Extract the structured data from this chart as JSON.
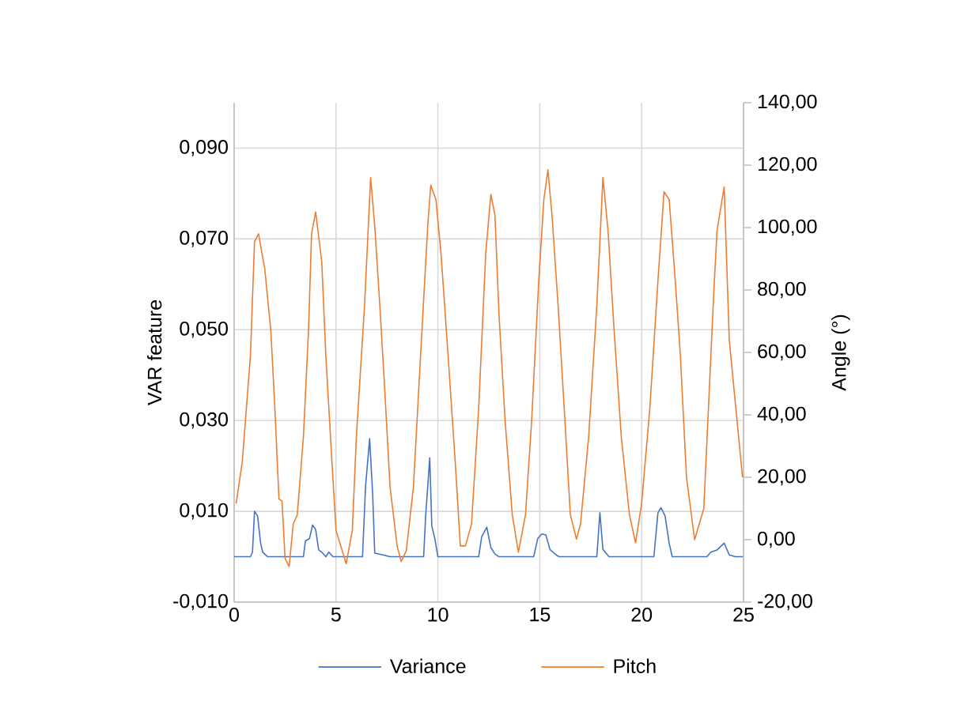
{
  "chart_data": {
    "type": "line",
    "xlabel": null,
    "ylabel": "VAR feature",
    "y2label": "Angle (°)",
    "xlim": [
      0,
      25
    ],
    "xticks": [
      0,
      5,
      10,
      15,
      20,
      25
    ],
    "ylim": [
      -0.01,
      0.1
    ],
    "yticks": [
      {
        "value": -0.01,
        "label": "-0,010"
      },
      {
        "value": 0.01,
        "label": "0,010"
      },
      {
        "value": 0.03,
        "label": "0,030"
      },
      {
        "value": 0.05,
        "label": "0,050"
      },
      {
        "value": 0.07,
        "label": "0,070"
      },
      {
        "value": 0.09,
        "label": "0,090"
      }
    ],
    "y2lim": [
      -20,
      140
    ],
    "y2ticks": [
      {
        "value": -20,
        "label": "-20,00"
      },
      {
        "value": 0,
        "label": "0,00"
      },
      {
        "value": 20,
        "label": "20,00"
      },
      {
        "value": 40,
        "label": "40,00"
      },
      {
        "value": 60,
        "label": "60,00"
      },
      {
        "value": 80,
        "label": "80,00"
      },
      {
        "value": 100,
        "label": "100,00"
      },
      {
        "value": 120,
        "label": "120,00"
      },
      {
        "value": 140,
        "label": "140,00"
      }
    ],
    "grid": true,
    "legend": "bottom",
    "marker": "none",
    "line_style": "solid",
    "series": [
      {
        "name": "Variance",
        "color": "#4472c4",
        "axis": "y",
        "x": [
          0,
          0.8,
          0.9,
          1.0,
          1.15,
          1.3,
          1.4,
          1.65,
          3.4,
          3.5,
          3.7,
          3.85,
          4.0,
          4.15,
          4.3,
          4.5,
          4.65,
          4.85,
          6.3,
          6.45,
          6.65,
          6.8,
          6.9,
          7.3,
          7.65,
          9.3,
          9.4,
          9.6,
          9.7,
          9.85,
          10.0,
          12.0,
          12.15,
          12.4,
          12.6,
          12.8,
          13.0,
          14.7,
          14.9,
          15.1,
          15.3,
          15.5,
          15.8,
          15.95,
          17.8,
          17.95,
          18.1,
          18.4,
          20.6,
          20.8,
          20.95,
          21.15,
          21.35,
          21.5,
          23.2,
          23.4,
          23.7,
          24.05,
          24.3,
          24.6,
          25
        ],
        "values": [
          0,
          0,
          0.001,
          0.01,
          0.009,
          0.003,
          0.001,
          0,
          0,
          0.0035,
          0.004,
          0.007,
          0.006,
          0.0015,
          0.001,
          0,
          0.001,
          0,
          0,
          0.0155,
          0.026,
          0.0137,
          0.0008,
          0.0004,
          0,
          0,
          0.009,
          0.0218,
          0.0068,
          0.004,
          0,
          0,
          0.0044,
          0.0065,
          0.002,
          0.0006,
          0,
          0,
          0.004,
          0.005,
          0.0048,
          0.0016,
          0.0004,
          0,
          0,
          0.0097,
          0.0016,
          0,
          0,
          0.0097,
          0.0108,
          0.009,
          0.003,
          0,
          0,
          0.001,
          0.0015,
          0.003,
          0.0004,
          0,
          0
        ]
      },
      {
        "name": "Pitch",
        "color": "#ed7d31",
        "axis": "y2",
        "x": [
          0.1,
          0.4,
          0.8,
          1.0,
          1.2,
          1.4,
          1.5,
          1.8,
          2.0,
          2.2,
          2.35,
          2.5,
          2.7,
          2.9,
          3.1,
          3.4,
          3.65,
          3.8,
          4.0,
          4.3,
          4.5,
          4.8,
          5.0,
          5.3,
          5.5,
          5.8,
          6.0,
          6.4,
          6.7,
          6.9,
          7.15,
          7.4,
          7.65,
          8.0,
          8.2,
          8.45,
          8.8,
          9.15,
          9.5,
          9.65,
          9.9,
          10.15,
          10.5,
          10.85,
          11.1,
          11.35,
          11.65,
          12.0,
          12.35,
          12.6,
          12.8,
          13.0,
          13.3,
          13.65,
          13.95,
          14.3,
          14.6,
          14.95,
          15.2,
          15.4,
          15.6,
          15.9,
          16.2,
          16.5,
          16.8,
          17.0,
          17.4,
          17.8,
          18.1,
          18.35,
          18.65,
          19.0,
          19.4,
          19.7,
          20.0,
          20.4,
          20.8,
          21.1,
          21.35,
          21.65,
          21.9,
          22.2,
          22.6,
          23.05,
          23.55,
          23.7,
          24.05,
          24.3,
          24.55,
          24.95
        ],
        "values": [
          11.6,
          25,
          59,
          95.5,
          98,
          90.5,
          87,
          67,
          42,
          13,
          12.4,
          -6,
          -8.6,
          5,
          8,
          33,
          67,
          98,
          105,
          89,
          59,
          25,
          3,
          -3.5,
          -7.7,
          3,
          33,
          75,
          116,
          100.5,
          75,
          47,
          17,
          -2,
          -7,
          -3.5,
          17,
          59,
          100.5,
          113.6,
          109,
          92,
          59,
          25,
          -2,
          -2,
          5,
          42,
          92,
          110.6,
          104,
          72,
          38,
          8,
          -4,
          8,
          38,
          83,
          109,
          118.5,
          104,
          75,
          42,
          8,
          0.2,
          5,
          33,
          75,
          116,
          99,
          67,
          33,
          8,
          -1,
          11.6,
          42,
          83,
          111.5,
          109,
          83,
          59,
          20,
          0,
          10,
          80.5,
          99,
          113,
          64,
          47,
          20
        ]
      }
    ]
  }
}
